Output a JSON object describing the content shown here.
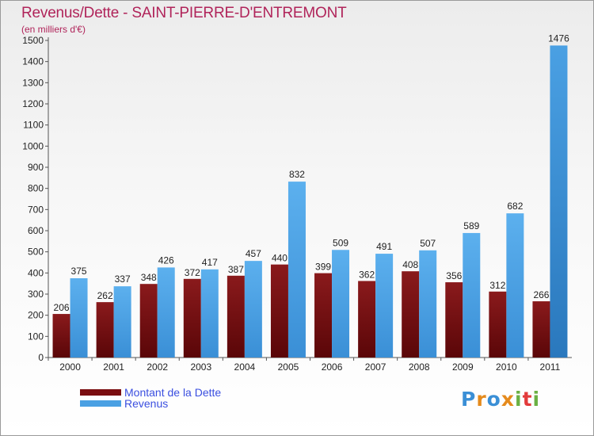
{
  "chart_data": {
    "type": "bar",
    "title": "Revenus/Dette - SAINT-PIERRE-D'ENTREMONT",
    "subtitle": "(en milliers d'€)",
    "categories": [
      "2000",
      "2001",
      "2002",
      "2003",
      "2004",
      "2005",
      "2006",
      "2007",
      "2008",
      "2009",
      "2010",
      "2011"
    ],
    "series": [
      {
        "name": "Montant de la Dette",
        "values": [
          206,
          262,
          348,
          372,
          387,
          440,
          399,
          362,
          408,
          356,
          312,
          266
        ],
        "color": "#7a0d10"
      },
      {
        "name": "Revenus",
        "values": [
          375,
          337,
          426,
          417,
          457,
          832,
          509,
          491,
          507,
          589,
          682,
          1476
        ],
        "color": "#4aa0e3"
      }
    ],
    "ylim": [
      0,
      1500
    ],
    "yticks": [
      0,
      100,
      200,
      300,
      400,
      500,
      600,
      700,
      800,
      900,
      1000,
      1100,
      1200,
      1300,
      1400,
      1500
    ],
    "grid": false,
    "legend": "bottom-left",
    "data_labels": true
  },
  "logo": {
    "text": "Proxiti"
  }
}
